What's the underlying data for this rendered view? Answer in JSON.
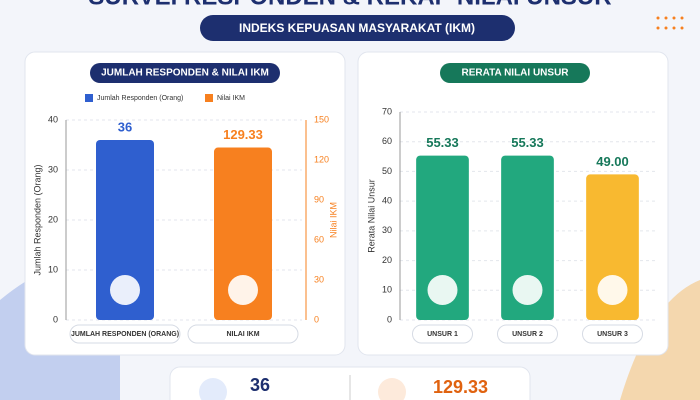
{
  "header": {
    "title": "SURVEI RESPONDEN & REKAP NILAI UNSUR",
    "subtitle": "INDEKS KEPUASAN MASYARAKAT (IKM)"
  },
  "chart_data": [
    {
      "type": "bar",
      "title": "JUMLAH RESPONDEN & NILAI IKM",
      "legend": "top",
      "categories": [
        "JUMLAH RESPONDEN (ORANG)",
        "NILAI IKM"
      ],
      "series": [
        {
          "name": "Jumlah Responden (Orang)",
          "color": "#2f5fcf",
          "values": [
            36,
            null
          ]
        },
        {
          "name": "Nilai IKM",
          "color": "#f7801f",
          "values": [
            null,
            129.33
          ],
          "axis": "y2"
        }
      ],
      "ylabel": "Jumlah Responden (Orang)",
      "y2label": "Nilai IKM",
      "ylim": [
        0,
        40
      ],
      "yticks": [
        0,
        10,
        20,
        30,
        40
      ],
      "y2lim": [
        0,
        150
      ],
      "y2ticks": [
        0,
        30,
        60,
        90,
        120,
        150
      ],
      "grid": true
    },
    {
      "type": "bar",
      "title": "RERATA NILAI UNSUR",
      "ylabel": "Rerata Nilai Unsur",
      "categories": [
        "UNSUR 1",
        "UNSUR 2",
        "UNSUR 3"
      ],
      "values": [
        55.33,
        55.33,
        49
      ],
      "value_labels": [
        "55.33",
        "55.33",
        "49.00"
      ],
      "colors": [
        "#22a87e",
        "#22a87e",
        "#f8b930"
      ],
      "ylim": [
        0,
        70
      ],
      "yticks": [
        0,
        10,
        20,
        30,
        40,
        50,
        60,
        70
      ],
      "grid": true
    }
  ]
}
